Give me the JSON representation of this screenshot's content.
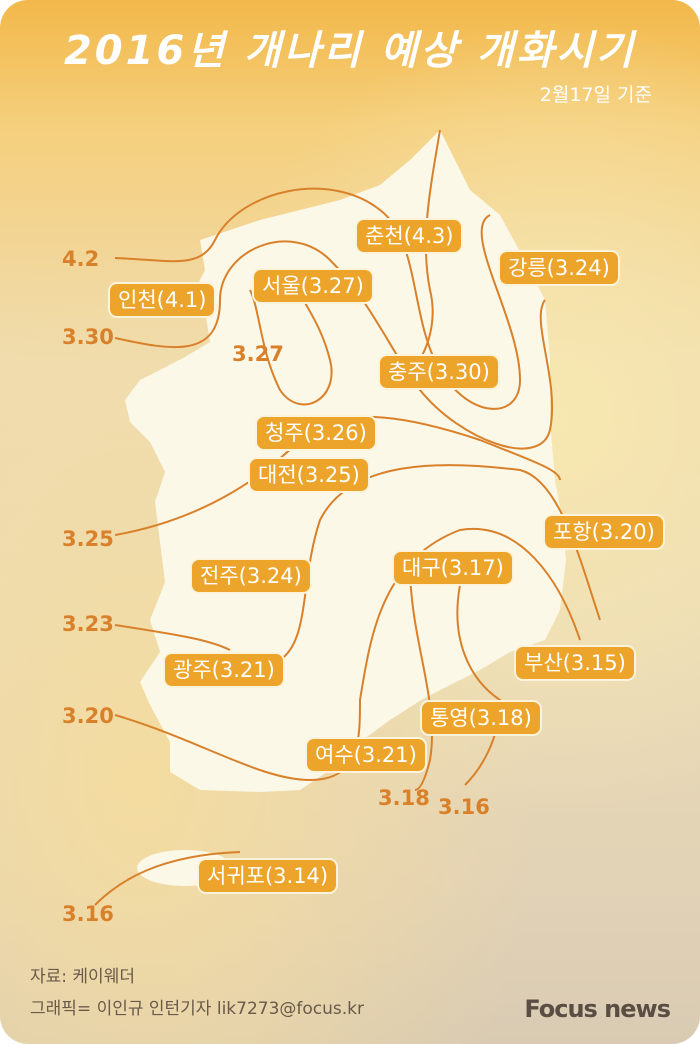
{
  "header": {
    "title": "2016년 개나리 예상 개화시기",
    "subtitle": "2월17일 기준"
  },
  "colors": {
    "pill": "#eca52a",
    "isoline": "#d9802a",
    "land": "#fbf8e8"
  },
  "cities": [
    {
      "label": "춘천(4.3)"
    },
    {
      "label": "강릉(3.24)"
    },
    {
      "label": "인천(4.1)"
    },
    {
      "label": "서울(3.27)"
    },
    {
      "label": "충주(3.30)"
    },
    {
      "label": "청주(3.26)"
    },
    {
      "label": "대전(3.25)"
    },
    {
      "label": "포항(3.20)"
    },
    {
      "label": "대구(3.17)"
    },
    {
      "label": "전주(3.24)"
    },
    {
      "label": "광주(3.21)"
    },
    {
      "label": "부산(3.15)"
    },
    {
      "label": "통영(3.18)"
    },
    {
      "label": "여수(3.21)"
    },
    {
      "label": "서귀포(3.14)"
    }
  ],
  "isolines": [
    "4.2",
    "3.30",
    "3.27",
    "3.25",
    "3.23",
    "3.20",
    "3.18",
    "3.16",
    "3.16"
  ],
  "footer": {
    "source": "자료: 케이웨더",
    "credit": "그래픽= 이인규 인턴기자 lik7273@focus.kr",
    "logo": "Focus news"
  }
}
